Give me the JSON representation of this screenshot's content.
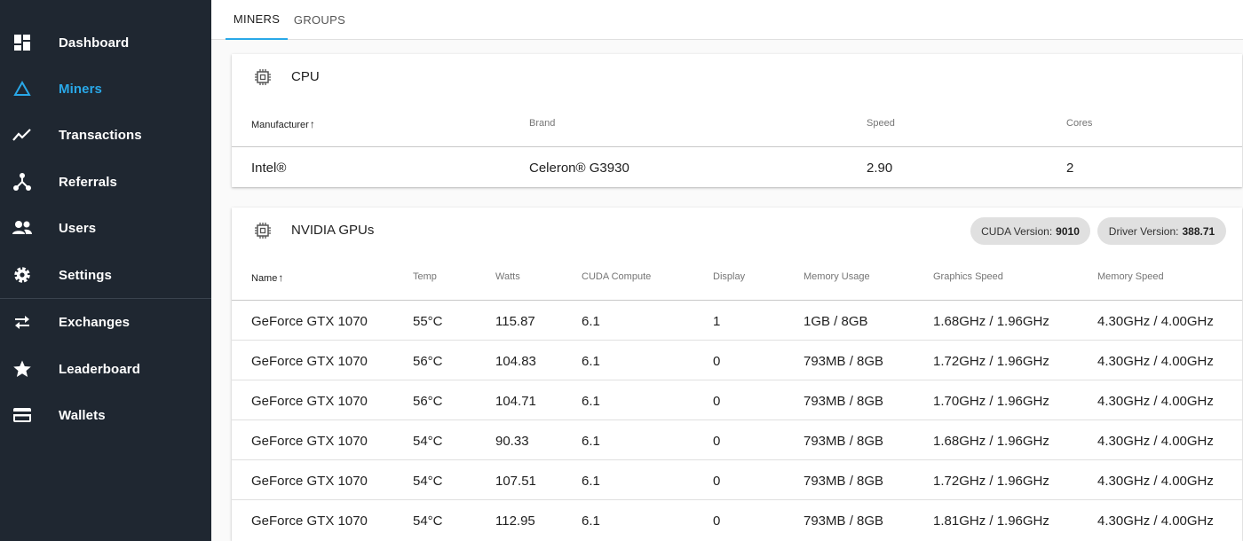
{
  "sidebar": {
    "items": [
      {
        "label": "Dashboard",
        "icon": "dashboard-icon"
      },
      {
        "label": "Miners",
        "icon": "triangle-icon"
      },
      {
        "label": "Transactions",
        "icon": "trending-icon"
      },
      {
        "label": "Referrals",
        "icon": "network-icon"
      },
      {
        "label": "Users",
        "icon": "users-icon"
      },
      {
        "label": "Settings",
        "icon": "gear-icon"
      },
      {
        "label": "Exchanges",
        "icon": "swap-icon"
      },
      {
        "label": "Leaderboard",
        "icon": "star-icon"
      },
      {
        "label": "Wallets",
        "icon": "card-icon"
      }
    ],
    "active_color": "#29a8e8"
  },
  "tabs": [
    {
      "label": "MINERS"
    },
    {
      "label": "GROUPS"
    }
  ],
  "cpu": {
    "title": "CPU",
    "headers": [
      "Manufacturer",
      "Brand",
      "Speed",
      "Cores"
    ],
    "row": [
      "Intel®",
      "Celeron® G3930",
      "2.90",
      "2"
    ]
  },
  "gpus": {
    "title": "NVIDIA GPUs",
    "cuda": {
      "label": "CUDA Version:",
      "value": "9010"
    },
    "driver": {
      "label": "Driver Version:",
      "value": "388.71"
    },
    "headers": [
      "Name",
      "Temp",
      "Watts",
      "CUDA Compute",
      "Display",
      "Memory Usage",
      "Graphics Speed",
      "Memory Speed"
    ],
    "rows": [
      [
        "GeForce GTX 1070",
        "55°C",
        "115.87",
        "6.1",
        "1",
        "1GB / 8GB",
        "1.68GHz / 1.96GHz",
        "4.30GHz / 4.00GHz"
      ],
      [
        "GeForce GTX 1070",
        "56°C",
        "104.83",
        "6.1",
        "0",
        "793MB / 8GB",
        "1.72GHz / 1.96GHz",
        "4.30GHz / 4.00GHz"
      ],
      [
        "GeForce GTX 1070",
        "56°C",
        "104.71",
        "6.1",
        "0",
        "793MB / 8GB",
        "1.70GHz / 1.96GHz",
        "4.30GHz / 4.00GHz"
      ],
      [
        "GeForce GTX 1070",
        "54°C",
        "90.33",
        "6.1",
        "0",
        "793MB / 8GB",
        "1.68GHz / 1.96GHz",
        "4.30GHz / 4.00GHz"
      ],
      [
        "GeForce GTX 1070",
        "54°C",
        "107.51",
        "6.1",
        "0",
        "793MB / 8GB",
        "1.72GHz / 1.96GHz",
        "4.30GHz / 4.00GHz"
      ],
      [
        "GeForce GTX 1070",
        "54°C",
        "112.95",
        "6.1",
        "0",
        "793MB / 8GB",
        "1.81GHz / 1.96GHz",
        "4.30GHz / 4.00GHz"
      ]
    ]
  }
}
